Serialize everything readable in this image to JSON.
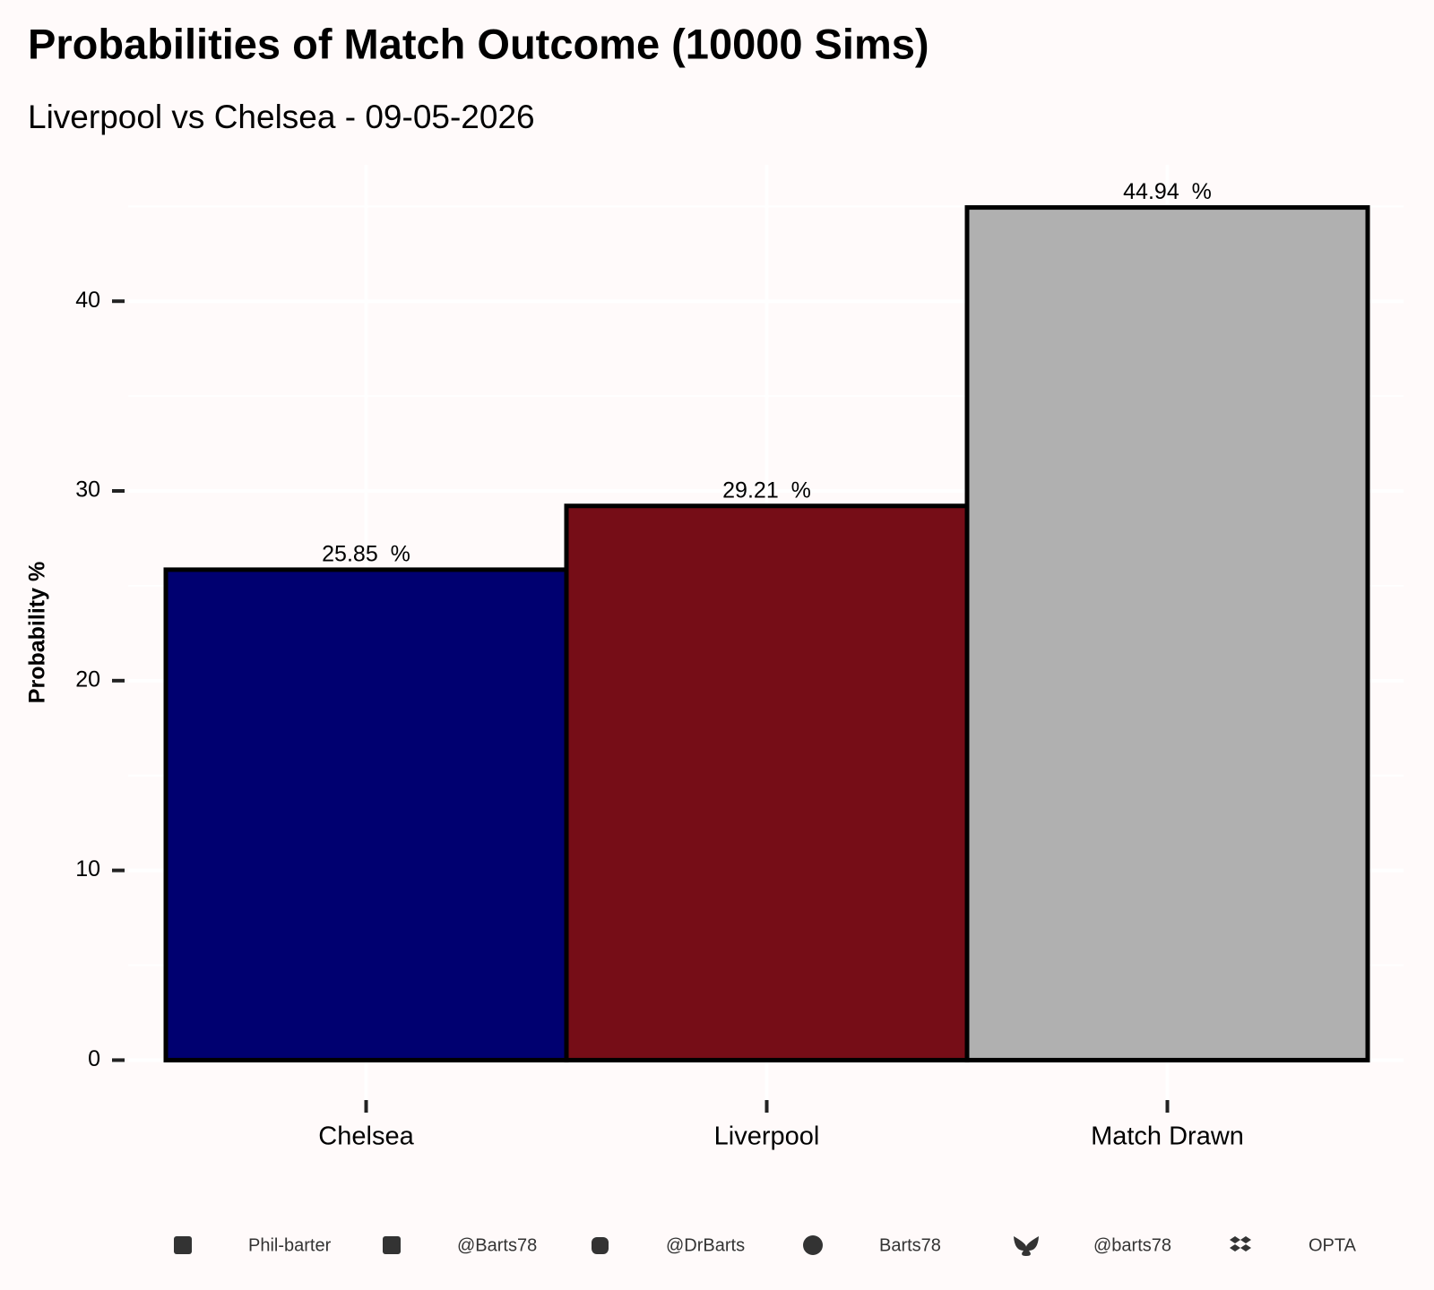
{
  "chart_data": {
    "type": "bar",
    "title": "Probabilities of Match Outcome (10000 Sims)",
    "subtitle": "Liverpool vs Chelsea - 09-05-2026",
    "y_label": "Probability %",
    "categories": [
      "Chelsea",
      "Liverpool",
      "Match Drawn"
    ],
    "values": [
      25.85,
      29.21,
      44.94
    ],
    "value_labels": [
      "25.85  %",
      "29.21  %",
      "44.94  %"
    ],
    "colors": [
      "#000070",
      "#760d17",
      "#b0b0b0"
    ],
    "ylim": [
      -2.247,
      47.187
    ],
    "yticks": [
      0,
      10,
      20,
      30,
      40
    ],
    "grid": true
  },
  "footer": {
    "items": [
      "Phil-barter",
      "@Barts78",
      "@DrBarts",
      "Barts78",
      "@barts78",
      "OPTA"
    ]
  }
}
